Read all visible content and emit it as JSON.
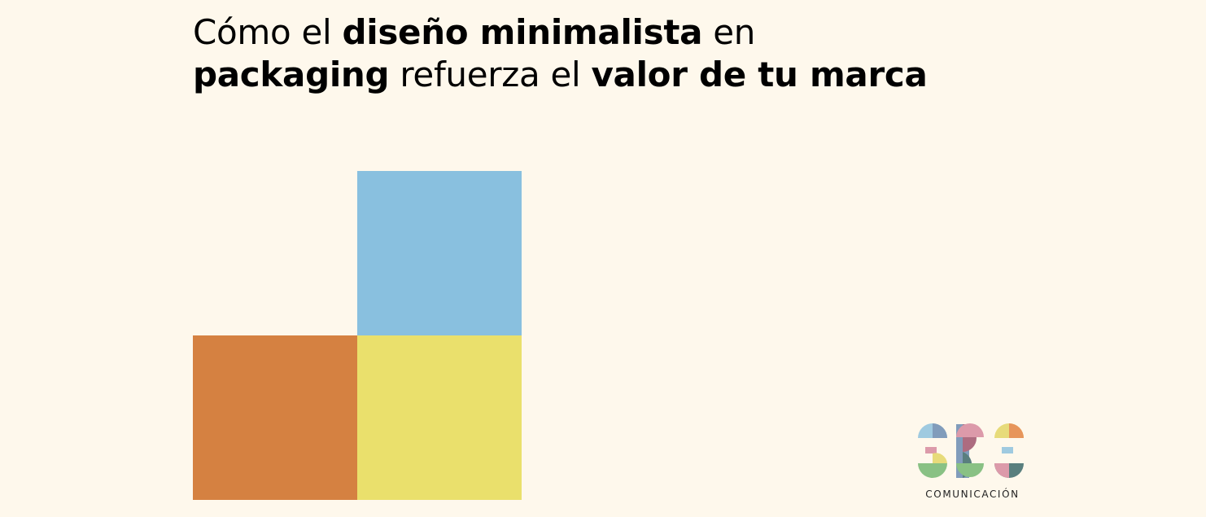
{
  "headline": {
    "line1": {
      "part1": "Cómo el ",
      "part2": "diseño minimalista",
      "part3": " en"
    },
    "line2": {
      "part1": "packaging",
      "part2": " refuerza el ",
      "part3": "valor de tu marca"
    }
  },
  "blocks": {
    "blue": "#89C0DF",
    "orange": "#D58141",
    "yellow": "#EAE06C"
  },
  "logo": {
    "caption": "COMUNICACIÓN",
    "palette": [
      "#8FC2DE",
      "#D78A9F",
      "#6C8CB3",
      "#E3D767",
      "#75B873",
      "#E48442",
      "#3D6B6B"
    ]
  }
}
